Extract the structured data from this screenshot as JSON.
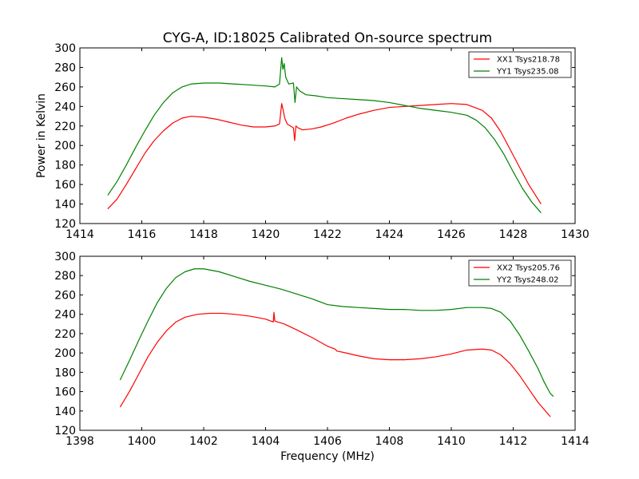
{
  "chart_data": [
    {
      "type": "line",
      "title": "CYG-A, ID:18025 Calibrated On-source spectrum",
      "xlabel": "",
      "ylabel": "Power in Kelvin",
      "xlim": [
        1414,
        1430
      ],
      "ylim": [
        120,
        300
      ],
      "xticks": [
        "1414",
        "1416",
        "1418",
        "1420",
        "1422",
        "1424",
        "1426",
        "1428",
        "1430"
      ],
      "yticks": [
        "120",
        "140",
        "160",
        "180",
        "200",
        "220",
        "240",
        "260",
        "280",
        "300"
      ],
      "grid": false,
      "legend_position": "top-right",
      "series": [
        {
          "name": "XX1 Tsys218.78",
          "color": "#ff0000",
          "points": [
            [
              1414.9,
              135
            ],
            [
              1415.2,
              145
            ],
            [
              1415.5,
              160
            ],
            [
              1415.8,
              176
            ],
            [
              1416.1,
              192
            ],
            [
              1416.4,
              205
            ],
            [
              1416.7,
              215
            ],
            [
              1417.0,
              223
            ],
            [
              1417.3,
              228
            ],
            [
              1417.6,
              230
            ],
            [
              1418.0,
              229
            ],
            [
              1418.4,
              227
            ],
            [
              1418.8,
              224
            ],
            [
              1419.2,
              221
            ],
            [
              1419.6,
              219
            ],
            [
              1420.0,
              219
            ],
            [
              1420.3,
              220
            ],
            [
              1420.45,
              222
            ],
            [
              1420.52,
              243
            ],
            [
              1420.57,
              236
            ],
            [
              1420.62,
              228
            ],
            [
              1420.7,
              222
            ],
            [
              1420.8,
              220
            ],
            [
              1420.9,
              218
            ],
            [
              1420.94,
              205
            ],
            [
              1420.98,
              220
            ],
            [
              1421.05,
              218
            ],
            [
              1421.2,
              216
            ],
            [
              1421.5,
              217
            ],
            [
              1421.8,
              219
            ],
            [
              1422.2,
              223
            ],
            [
              1422.6,
              228
            ],
            [
              1423.0,
              232
            ],
            [
              1423.5,
              236
            ],
            [
              1424.0,
              239
            ],
            [
              1424.5,
              240
            ],
            [
              1425.0,
              241
            ],
            [
              1425.5,
              242
            ],
            [
              1426.0,
              243
            ],
            [
              1426.5,
              242
            ],
            [
              1427.0,
              236
            ],
            [
              1427.3,
              228
            ],
            [
              1427.6,
              214
            ],
            [
              1427.9,
              196
            ],
            [
              1428.2,
              178
            ],
            [
              1428.5,
              160
            ],
            [
              1428.9,
              140
            ]
          ]
        },
        {
          "name": "YY1 Tsys235.08",
          "color": "#008000",
          "points": [
            [
              1414.9,
              149
            ],
            [
              1415.2,
              163
            ],
            [
              1415.5,
              180
            ],
            [
              1415.8,
              198
            ],
            [
              1416.1,
              215
            ],
            [
              1416.4,
              231
            ],
            [
              1416.7,
              244
            ],
            [
              1417.0,
              254
            ],
            [
              1417.3,
              260
            ],
            [
              1417.6,
              263
            ],
            [
              1418.0,
              264
            ],
            [
              1418.5,
              264
            ],
            [
              1419.0,
              263
            ],
            [
              1419.5,
              262
            ],
            [
              1420.0,
              261
            ],
            [
              1420.3,
              260
            ],
            [
              1420.45,
              263
            ],
            [
              1420.52,
              290
            ],
            [
              1420.56,
              278
            ],
            [
              1420.6,
              284
            ],
            [
              1420.65,
              270
            ],
            [
              1420.75,
              263
            ],
            [
              1420.9,
              264
            ],
            [
              1420.95,
              244
            ],
            [
              1421.0,
              260
            ],
            [
              1421.1,
              256
            ],
            [
              1421.3,
              252
            ],
            [
              1421.6,
              251
            ],
            [
              1422.0,
              249
            ],
            [
              1422.5,
              248
            ],
            [
              1423.0,
              247
            ],
            [
              1423.5,
              246
            ],
            [
              1424.0,
              244
            ],
            [
              1424.5,
              241
            ],
            [
              1425.0,
              238
            ],
            [
              1425.5,
              236
            ],
            [
              1426.0,
              234
            ],
            [
              1426.5,
              231
            ],
            [
              1426.8,
              226
            ],
            [
              1427.1,
              218
            ],
            [
              1427.4,
              206
            ],
            [
              1427.7,
              191
            ],
            [
              1428.0,
              173
            ],
            [
              1428.3,
              156
            ],
            [
              1428.6,
              142
            ],
            [
              1428.9,
              131
            ]
          ]
        }
      ]
    },
    {
      "type": "line",
      "title": "",
      "xlabel": "Frequency (MHz)",
      "ylabel": "",
      "xlim": [
        1398,
        1414
      ],
      "ylim": [
        120,
        300
      ],
      "xticks": [
        "1398",
        "1400",
        "1402",
        "1404",
        "1406",
        "1408",
        "1410",
        "1412",
        "1414"
      ],
      "yticks": [
        "120",
        "140",
        "160",
        "180",
        "200",
        "220",
        "240",
        "260",
        "280",
        "300"
      ],
      "grid": false,
      "legend_position": "top-right",
      "series": [
        {
          "name": "XX2 Tsys205.76",
          "color": "#ff0000",
          "points": [
            [
              1399.3,
              144
            ],
            [
              1399.6,
              160
            ],
            [
              1399.9,
              178
            ],
            [
              1400.2,
              196
            ],
            [
              1400.5,
              211
            ],
            [
              1400.8,
              223
            ],
            [
              1401.1,
              232
            ],
            [
              1401.4,
              237
            ],
            [
              1401.8,
              240
            ],
            [
              1402.2,
              241
            ],
            [
              1402.6,
              241
            ],
            [
              1403.0,
              240
            ],
            [
              1403.5,
              238
            ],
            [
              1404.0,
              235
            ],
            [
              1404.25,
              232
            ],
            [
              1404.27,
              242
            ],
            [
              1404.3,
              233
            ],
            [
              1404.6,
              230
            ],
            [
              1405.0,
              224
            ],
            [
              1405.5,
              216
            ],
            [
              1406.0,
              207
            ],
            [
              1406.25,
              204
            ],
            [
              1406.3,
              202
            ],
            [
              1406.6,
              200
            ],
            [
              1407.0,
              197
            ],
            [
              1407.5,
              194
            ],
            [
              1408.0,
              193
            ],
            [
              1408.5,
              193
            ],
            [
              1409.0,
              194
            ],
            [
              1409.5,
              196
            ],
            [
              1410.0,
              199
            ],
            [
              1410.5,
              203
            ],
            [
              1411.0,
              204
            ],
            [
              1411.3,
              203
            ],
            [
              1411.6,
              198
            ],
            [
              1411.9,
              189
            ],
            [
              1412.2,
              177
            ],
            [
              1412.5,
              163
            ],
            [
              1412.8,
              149
            ],
            [
              1413.2,
              134
            ]
          ]
        },
        {
          "name": "YY2 Tsys248.02",
          "color": "#008000",
          "points": [
            [
              1399.3,
              172
            ],
            [
              1399.6,
              192
            ],
            [
              1399.9,
              213
            ],
            [
              1400.2,
              233
            ],
            [
              1400.5,
              252
            ],
            [
              1400.8,
              267
            ],
            [
              1401.1,
              278
            ],
            [
              1401.4,
              284
            ],
            [
              1401.7,
              287
            ],
            [
              1402.0,
              287
            ],
            [
              1402.5,
              284
            ],
            [
              1403.0,
              279
            ],
            [
              1403.5,
              274
            ],
            [
              1404.0,
              270
            ],
            [
              1404.5,
              266
            ],
            [
              1405.0,
              261
            ],
            [
              1405.5,
              256
            ],
            [
              1406.0,
              250
            ],
            [
              1406.5,
              248
            ],
            [
              1407.0,
              247
            ],
            [
              1407.5,
              246
            ],
            [
              1408.0,
              245
            ],
            [
              1408.5,
              245
            ],
            [
              1409.0,
              244
            ],
            [
              1409.5,
              244
            ],
            [
              1410.0,
              245
            ],
            [
              1410.5,
              247
            ],
            [
              1411.0,
              247
            ],
            [
              1411.3,
              246
            ],
            [
              1411.6,
              242
            ],
            [
              1411.9,
              233
            ],
            [
              1412.2,
              219
            ],
            [
              1412.5,
              202
            ],
            [
              1412.8,
              184
            ],
            [
              1413.0,
              170
            ],
            [
              1413.2,
              158
            ],
            [
              1413.3,
              155
            ]
          ]
        }
      ]
    }
  ]
}
